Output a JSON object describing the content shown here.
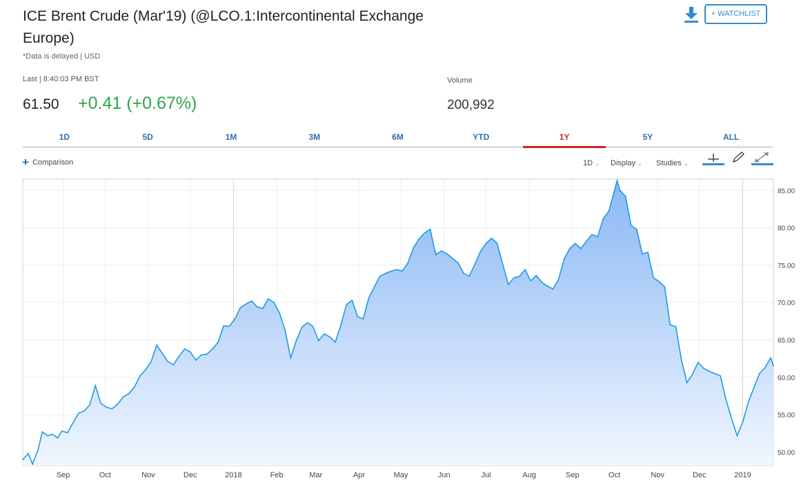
{
  "header": {
    "title": "ICE Brent Crude (Mar'19) (@LCO.1:Intercontinental Exchange Europe)",
    "subtitle": "*Data is delayed | USD",
    "watchlist_label": "+ WATCHLIST",
    "download_icon": "download-icon"
  },
  "quote": {
    "last_label": "Last | 8:40:03 PM BST",
    "price": "61.50",
    "change": "+0.41 (+0.67%)",
    "change_color": "#2da44e",
    "volume_label": "Volume",
    "volume_value": "200,992"
  },
  "range_tabs": [
    {
      "label": "1D",
      "active": false
    },
    {
      "label": "5D",
      "active": false
    },
    {
      "label": "1M",
      "active": false
    },
    {
      "label": "3M",
      "active": false
    },
    {
      "label": "6M",
      "active": false
    },
    {
      "label": "YTD",
      "active": false
    },
    {
      "label": "1Y",
      "active": true
    },
    {
      "label": "5Y",
      "active": false
    },
    {
      "label": "ALL",
      "active": false
    }
  ],
  "toolbar": {
    "comparison_label": "Comparison",
    "interval_label": "1D",
    "display_label": "Display",
    "studies_label": "Studies",
    "icons": [
      "crosshair-icon",
      "pencil-icon",
      "expand-icon"
    ]
  },
  "chart_data": {
    "type": "area",
    "title": "",
    "xlabel": "",
    "ylabel": "",
    "ylim": [
      48.2,
      86.5
    ],
    "y_ticks": [
      "85.00",
      "80.00",
      "75.00",
      "70.00",
      "65.00",
      "60.00",
      "55.00",
      "50.00"
    ],
    "y_tick_values": [
      85,
      80,
      75,
      70,
      65,
      60,
      55,
      50
    ],
    "x_ticks": [
      "Sep",
      "Oct",
      "Nov",
      "Dec",
      "2018",
      "Feb",
      "Mar",
      "Apr",
      "May",
      "Jun",
      "Jul",
      "Aug",
      "Sep",
      "Oct",
      "Nov",
      "Dec",
      "2019"
    ],
    "x_tick_dates": [
      "2017-09-01",
      "2017-10-01",
      "2017-11-01",
      "2017-12-01",
      "2018-01-01",
      "2018-02-01",
      "2018-03-01",
      "2018-04-01",
      "2018-05-01",
      "2018-06-01",
      "2018-07-01",
      "2018-08-01",
      "2018-09-01",
      "2018-10-01",
      "2018-11-01",
      "2018-12-01",
      "2019-01-01"
    ],
    "x_range": [
      "2017-08-03",
      "2019-01-23"
    ],
    "grid": true,
    "line_color": "#1e9be0",
    "fill_top_color": "#8ab8f5",
    "fill_bottom_color": "#f1f6fe",
    "series": [
      {
        "x": [
          "2017-08-03",
          "2017-08-07",
          "2017-08-10",
          "2017-08-14",
          "2017-08-17",
          "2017-08-21",
          "2017-08-24",
          "2017-08-28",
          "2017-08-31",
          "2017-09-04",
          "2017-09-08",
          "2017-09-12",
          "2017-09-16",
          "2017-09-20",
          "2017-09-24",
          "2017-09-28",
          "2017-10-02",
          "2017-10-06",
          "2017-10-10",
          "2017-10-14",
          "2017-10-18",
          "2017-10-22",
          "2017-10-26",
          "2017-10-30",
          "2017-11-03",
          "2017-11-07",
          "2017-11-11",
          "2017-11-15",
          "2017-11-19",
          "2017-11-23",
          "2017-11-27",
          "2017-12-01",
          "2017-12-05",
          "2017-12-09",
          "2017-12-13",
          "2017-12-17",
          "2017-12-21",
          "2017-12-25",
          "2017-12-29",
          "2018-01-02",
          "2018-01-06",
          "2018-01-10",
          "2018-01-14",
          "2018-01-18",
          "2018-01-22",
          "2018-01-26",
          "2018-01-30",
          "2018-02-03",
          "2018-02-07",
          "2018-02-11",
          "2018-02-15",
          "2018-02-19",
          "2018-02-23",
          "2018-02-27",
          "2018-03-03",
          "2018-03-07",
          "2018-03-11",
          "2018-03-15",
          "2018-03-19",
          "2018-03-23",
          "2018-03-27",
          "2018-03-31",
          "2018-04-04",
          "2018-04-08",
          "2018-04-12",
          "2018-04-16",
          "2018-04-20",
          "2018-04-24",
          "2018-04-28",
          "2018-05-02",
          "2018-05-06",
          "2018-05-10",
          "2018-05-14",
          "2018-05-18",
          "2018-05-22",
          "2018-05-26",
          "2018-05-30",
          "2018-06-03",
          "2018-06-07",
          "2018-06-11",
          "2018-06-15",
          "2018-06-19",
          "2018-06-23",
          "2018-06-27",
          "2018-07-01",
          "2018-07-05",
          "2018-07-09",
          "2018-07-13",
          "2018-07-17",
          "2018-07-21",
          "2018-07-25",
          "2018-07-29",
          "2018-08-02",
          "2018-08-06",
          "2018-08-10",
          "2018-08-14",
          "2018-08-18",
          "2018-08-22",
          "2018-08-26",
          "2018-08-30",
          "2018-09-03",
          "2018-09-07",
          "2018-09-11",
          "2018-09-15",
          "2018-09-19",
          "2018-09-23",
          "2018-09-27",
          "2018-10-01",
          "2018-10-03",
          "2018-10-05",
          "2018-10-09",
          "2018-10-13",
          "2018-10-17",
          "2018-10-21",
          "2018-10-25",
          "2018-10-29",
          "2018-11-02",
          "2018-11-06",
          "2018-11-10",
          "2018-11-14",
          "2018-11-18",
          "2018-11-22",
          "2018-11-26",
          "2018-11-30",
          "2018-12-04",
          "2018-12-08",
          "2018-12-12",
          "2018-12-16",
          "2018-12-20",
          "2018-12-24",
          "2018-12-28",
          "2019-01-01",
          "2019-01-05",
          "2019-01-09",
          "2019-01-13",
          "2019-01-17",
          "2019-01-21",
          "2019-01-23"
        ],
        "values": [
          49.0,
          49.8,
          48.4,
          50.3,
          52.7,
          52.2,
          52.4,
          51.9,
          52.8,
          52.6,
          53.9,
          55.2,
          55.5,
          56.3,
          58.9,
          56.5,
          56.0,
          55.8,
          56.4,
          57.4,
          57.8,
          58.7,
          60.2,
          61.0,
          62.1,
          64.3,
          63.2,
          62.1,
          61.7,
          62.8,
          63.8,
          63.4,
          62.3,
          63.0,
          63.1,
          63.8,
          64.7,
          66.9,
          66.8,
          67.8,
          69.3,
          69.8,
          70.2,
          69.4,
          69.2,
          70.5,
          70.0,
          68.6,
          66.3,
          62.6,
          64.9,
          66.7,
          67.3,
          66.8,
          64.9,
          65.8,
          65.4,
          64.7,
          67.0,
          69.7,
          70.3,
          68.1,
          67.8,
          70.6,
          72.1,
          73.5,
          73.9,
          74.2,
          74.4,
          74.2,
          75.3,
          77.3,
          78.5,
          79.3,
          79.8,
          76.4,
          76.9,
          76.5,
          75.9,
          75.3,
          73.9,
          73.5,
          75.1,
          76.8,
          77.9,
          78.6,
          77.9,
          75.1,
          72.4,
          73.3,
          73.5,
          74.4,
          72.9,
          73.6,
          72.7,
          72.2,
          71.8,
          73.1,
          75.8,
          77.2,
          77.9,
          77.2,
          78.2,
          79.1,
          78.8,
          81.2,
          82.2,
          84.9,
          86.3,
          85.0,
          84.2,
          80.3,
          79.8,
          76.5,
          76.7,
          73.3,
          72.8,
          72.1,
          67.0,
          66.8,
          62.4,
          59.3,
          60.4,
          62.0,
          61.2,
          60.8,
          60.5,
          60.2,
          57.0,
          54.5,
          52.2,
          54.0,
          56.7,
          58.6,
          60.5,
          61.3,
          62.6,
          61.5
        ]
      }
    ]
  }
}
